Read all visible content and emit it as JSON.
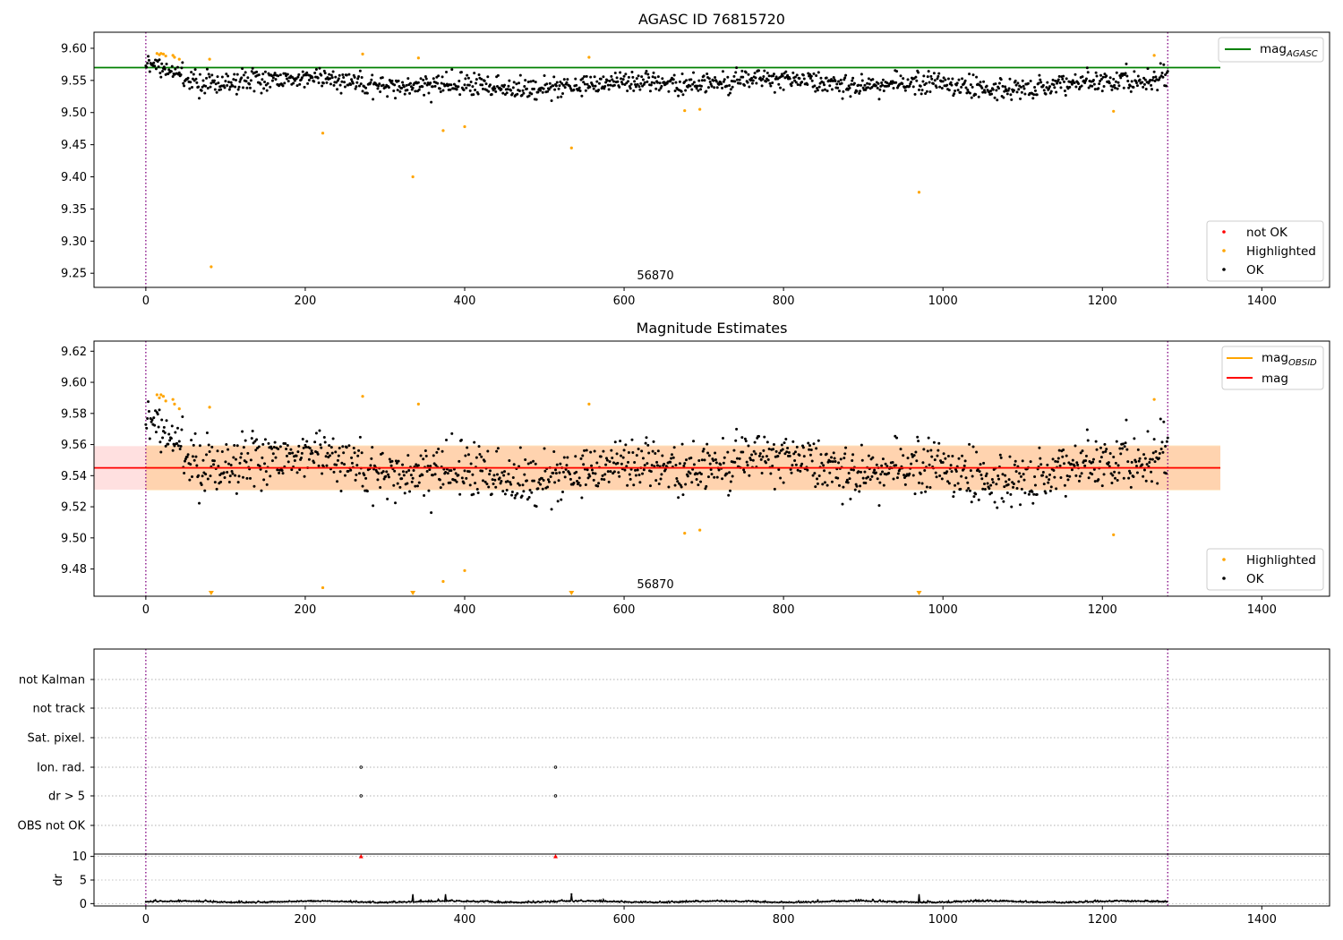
{
  "colors": {
    "ok": "#000000",
    "highlighted": "#ffa500",
    "not_ok": "#ff0000",
    "mag_agasc_line": "#008000",
    "mag_obsid_line": "#ffa500",
    "mag_line": "#ff0000",
    "interval_line": "#800080",
    "mag_band_obsid": "#ffa500",
    "mag_band": "#ff0000"
  },
  "chart_data": [
    {
      "type": "scatter",
      "title": "AGASC ID 76815720",
      "xlim": [
        -65,
        1485
      ],
      "ylim": [
        9.228,
        9.625
      ],
      "xticks": [
        0,
        200,
        400,
        600,
        800,
        1000,
        1200,
        1400
      ],
      "yticks": [
        9.25,
        9.3,
        9.35,
        9.4,
        9.45,
        9.5,
        9.55,
        9.6
      ],
      "ytick_labels": [
        "9.25",
        "9.30",
        "9.35",
        "9.40",
        "9.45",
        "9.50",
        "9.55",
        "9.60"
      ],
      "n_points": 1283,
      "ok_mean": 9.545,
      "ok_sigma": 0.013,
      "vlines": [
        0,
        1282
      ],
      "hline": {
        "name": "mag_AGASC",
        "y": 9.57,
        "xrange": [
          -65,
          1348
        ]
      },
      "obsid_annotation": {
        "text": "56870",
        "x": 640
      },
      "highlighted_points": [
        [
          14,
          9.592
        ],
        [
          17,
          9.59
        ],
        [
          19,
          9.592
        ],
        [
          22,
          9.591
        ],
        [
          25,
          9.588
        ],
        [
          34,
          9.589
        ],
        [
          36,
          9.586
        ],
        [
          42,
          9.583
        ],
        [
          80,
          9.583
        ],
        [
          222,
          9.468
        ],
        [
          272,
          9.591
        ],
        [
          335,
          9.4
        ],
        [
          342,
          9.585
        ],
        [
          373,
          9.472
        ],
        [
          400,
          9.478
        ],
        [
          534,
          9.445
        ],
        [
          556,
          9.586
        ],
        [
          676,
          9.503
        ],
        [
          695,
          9.505
        ],
        [
          82,
          9.26
        ],
        [
          970,
          9.376
        ],
        [
          1214,
          9.502
        ],
        [
          1265,
          9.589
        ]
      ],
      "legend": {
        "upper": [
          {
            "label": "mag",
            "sub": "AGASC"
          }
        ],
        "lower": [
          {
            "label": "not OK"
          },
          {
            "label": "Highlighted"
          },
          {
            "label": "OK"
          }
        ]
      }
    },
    {
      "type": "scatter",
      "title": "Magnitude Estimates",
      "xlim": [
        -65,
        1485
      ],
      "ylim": [
        9.4625,
        9.6265
      ],
      "xticks": [
        0,
        200,
        400,
        600,
        800,
        1000,
        1200,
        1400
      ],
      "yticks": [
        9.48,
        9.5,
        9.52,
        9.54,
        9.56,
        9.58,
        9.6,
        9.62
      ],
      "ytick_labels": [
        "9.48",
        "9.50",
        "9.52",
        "9.54",
        "9.56",
        "9.58",
        "9.60",
        "9.62"
      ],
      "vlines": [
        0,
        1282
      ],
      "mag_obsid": {
        "y": 9.545,
        "band": [
          9.5305,
          9.5595
        ],
        "xrange": [
          0,
          1348
        ]
      },
      "mag": {
        "y": 9.545,
        "band": [
          9.531,
          9.559
        ],
        "xrange": [
          -65,
          1348
        ]
      },
      "obsid_annotation": {
        "text": "56870",
        "x": 640
      },
      "offscale_markers_x": [
        82,
        335,
        534,
        970
      ],
      "highlighted_points": [
        [
          14,
          9.592
        ],
        [
          17,
          9.59
        ],
        [
          19,
          9.592
        ],
        [
          22,
          9.591
        ],
        [
          25,
          9.588
        ],
        [
          34,
          9.589
        ],
        [
          36,
          9.586
        ],
        [
          42,
          9.583
        ],
        [
          80,
          9.584
        ],
        [
          222,
          9.468
        ],
        [
          272,
          9.591
        ],
        [
          342,
          9.586
        ],
        [
          373,
          9.472
        ],
        [
          400,
          9.479
        ],
        [
          556,
          9.586
        ],
        [
          676,
          9.503
        ],
        [
          695,
          9.505
        ],
        [
          1214,
          9.502
        ],
        [
          1265,
          9.589
        ]
      ],
      "legend": {
        "upper": [
          {
            "label": "mag",
            "sub": "OBSID"
          },
          {
            "label": "mag"
          }
        ],
        "lower": [
          {
            "label": "Highlighted"
          },
          {
            "label": "OK"
          }
        ]
      }
    },
    {
      "type": "scatter",
      "title": "",
      "xlim": [
        -65,
        1485
      ],
      "categories": [
        "not Kalman",
        "not track",
        "Sat. pixel.",
        "Ion. rad.",
        "dr > 5",
        "OBS not OK"
      ],
      "flag_points": [
        {
          "category": "Ion. rad.",
          "x": [
            270,
            514
          ]
        },
        {
          "category": "dr > 5",
          "x": [
            270,
            514
          ]
        }
      ],
      "vlines": [
        0,
        1282
      ]
    },
    {
      "type": "line",
      "title": "",
      "ylabel": "dr",
      "xlim": [
        -65,
        1485
      ],
      "ylim": [
        -0.5,
        10.5
      ],
      "xticks": [
        0,
        200,
        400,
        600,
        800,
        1000,
        1200,
        1400
      ],
      "yticks": [
        0,
        5,
        10
      ],
      "ytick_labels": [
        "0",
        "5",
        "10"
      ],
      "typical_dr": 0.3,
      "outliers": [
        [
          270,
          10
        ],
        [
          514,
          10
        ]
      ],
      "vlines": [
        0,
        1282
      ]
    }
  ]
}
